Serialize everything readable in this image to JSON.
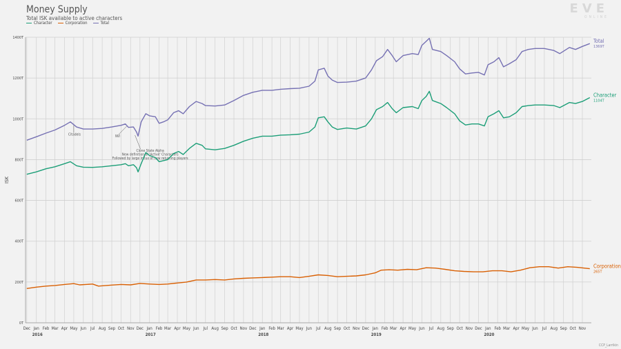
{
  "header": {
    "title": "Money Supply",
    "subtitle": "Total ISK available to active characters",
    "logo": "EVE",
    "logo_sub": "ONLINE",
    "credit": "CCP_Larrikin"
  },
  "colors": {
    "Character": "#1b9e77",
    "Corporation": "#d95f02",
    "Total": "#7570b3"
  },
  "chart_data": {
    "type": "line",
    "title": "Money Supply",
    "subtitle": "Total ISK available to active characters",
    "ylabel": "ISK",
    "xlabel": "",
    "ylim": [
      0,
      1400
    ],
    "yticks": [
      0,
      200,
      400,
      600,
      800,
      1000,
      1200,
      1400
    ],
    "ytick_labels": [
      "0T",
      "200T",
      "400T",
      "600T",
      "800T",
      "1000T",
      "1200T",
      "1400T"
    ],
    "x_range": [
      "2015-11-27",
      "2020-11-30"
    ],
    "month_labels": [
      "Dec",
      "Jan",
      "Feb",
      "Mar",
      "Apr",
      "May",
      "Jun",
      "Jul",
      "Aug",
      "Sep",
      "Oct",
      "Nov",
      "Dec",
      "Jan",
      "Feb",
      "Mar",
      "Apr",
      "May",
      "Jun",
      "Jul",
      "Aug",
      "Sep",
      "Oct",
      "Nov",
      "Dec",
      "Jan",
      "Feb",
      "Mar",
      "Apr",
      "May",
      "Jun",
      "Jul",
      "Aug",
      "Sep",
      "Oct",
      "Nov",
      "Dec",
      "Jan",
      "Feb",
      "Mar",
      "Apr",
      "May",
      "Jun",
      "Jul",
      "Aug",
      "Sep",
      "Oct",
      "Nov",
      "Dec",
      "Jan",
      "Feb",
      "Mar",
      "Apr",
      "May",
      "Jun",
      "Jul",
      "Aug",
      "Sep",
      "Oct",
      "Nov"
    ],
    "year_labels": [
      {
        "year": "2016",
        "date": "2016-01-01"
      },
      {
        "year": "2017",
        "date": "2017-01-01"
      },
      {
        "year": "2018",
        "date": "2018-01-01"
      },
      {
        "year": "2019",
        "date": "2019-01-01"
      },
      {
        "year": "2020",
        "date": "2020-01-01"
      }
    ],
    "grid": true,
    "legend": "top-left",
    "series": [
      {
        "name": "Total",
        "end_label": "Total",
        "end_value": "1369T",
        "points": [
          [
            "2015-12-01",
            895
          ],
          [
            "2016-01-01",
            912
          ],
          [
            "2016-02-01",
            930
          ],
          [
            "2016-03-01",
            945
          ],
          [
            "2016-04-01",
            968
          ],
          [
            "2016-04-20",
            985
          ],
          [
            "2016-05-10",
            960
          ],
          [
            "2016-06-01",
            950
          ],
          [
            "2016-07-01",
            950
          ],
          [
            "2016-08-01",
            953
          ],
          [
            "2016-09-01",
            960
          ],
          [
            "2016-10-01",
            968
          ],
          [
            "2016-10-15",
            975
          ],
          [
            "2016-10-25",
            958
          ],
          [
            "2016-11-10",
            960
          ],
          [
            "2016-11-20",
            935
          ],
          [
            "2016-11-25",
            915
          ],
          [
            "2016-12-05",
            985
          ],
          [
            "2016-12-20",
            1025
          ],
          [
            "2017-01-01",
            1015
          ],
          [
            "2017-01-20",
            1010
          ],
          [
            "2017-02-01",
            978
          ],
          [
            "2017-02-15",
            985
          ],
          [
            "2017-03-01",
            995
          ],
          [
            "2017-03-20",
            1030
          ],
          [
            "2017-04-05",
            1040
          ],
          [
            "2017-04-20",
            1025
          ],
          [
            "2017-05-10",
            1060
          ],
          [
            "2017-06-01",
            1085
          ],
          [
            "2017-06-20",
            1075
          ],
          [
            "2017-07-01",
            1065
          ],
          [
            "2017-08-01",
            1063
          ],
          [
            "2017-09-01",
            1068
          ],
          [
            "2017-10-01",
            1090
          ],
          [
            "2017-11-01",
            1115
          ],
          [
            "2017-12-01",
            1130
          ],
          [
            "2018-01-01",
            1140
          ],
          [
            "2018-02-01",
            1140
          ],
          [
            "2018-03-01",
            1145
          ],
          [
            "2018-04-01",
            1148
          ],
          [
            "2018-05-01",
            1150
          ],
          [
            "2018-06-01",
            1160
          ],
          [
            "2018-06-20",
            1185
          ],
          [
            "2018-07-01",
            1240
          ],
          [
            "2018-07-20",
            1248
          ],
          [
            "2018-08-01",
            1210
          ],
          [
            "2018-08-15",
            1190
          ],
          [
            "2018-09-01",
            1178
          ],
          [
            "2018-10-01",
            1180
          ],
          [
            "2018-11-01",
            1185
          ],
          [
            "2018-12-01",
            1200
          ],
          [
            "2018-12-20",
            1240
          ],
          [
            "2019-01-05",
            1285
          ],
          [
            "2019-01-25",
            1305
          ],
          [
            "2019-02-10",
            1340
          ],
          [
            "2019-02-25",
            1310
          ],
          [
            "2019-03-10",
            1280
          ],
          [
            "2019-04-01",
            1310
          ],
          [
            "2019-05-01",
            1320
          ],
          [
            "2019-05-20",
            1315
          ],
          [
            "2019-06-01",
            1360
          ],
          [
            "2019-06-15",
            1380
          ],
          [
            "2019-06-25",
            1395
          ],
          [
            "2019-07-05",
            1340
          ],
          [
            "2019-08-01",
            1330
          ],
          [
            "2019-08-20",
            1310
          ],
          [
            "2019-09-15",
            1280
          ],
          [
            "2019-10-01",
            1245
          ],
          [
            "2019-10-20",
            1220
          ],
          [
            "2019-11-10",
            1225
          ],
          [
            "2019-12-01",
            1228
          ],
          [
            "2019-12-20",
            1215
          ],
          [
            "2020-01-01",
            1265
          ],
          [
            "2020-01-20",
            1280
          ],
          [
            "2020-02-05",
            1300
          ],
          [
            "2020-02-20",
            1255
          ],
          [
            "2020-03-10",
            1270
          ],
          [
            "2020-04-01",
            1290
          ],
          [
            "2020-04-20",
            1330
          ],
          [
            "2020-05-10",
            1340
          ],
          [
            "2020-06-01",
            1345
          ],
          [
            "2020-07-01",
            1345
          ],
          [
            "2020-08-01",
            1335
          ],
          [
            "2020-08-20",
            1320
          ],
          [
            "2020-09-20",
            1350
          ],
          [
            "2020-10-10",
            1340
          ],
          [
            "2020-11-01",
            1355
          ],
          [
            "2020-11-25",
            1369
          ]
        ]
      },
      {
        "name": "Character",
        "end_label": "Character",
        "end_value": "1104T",
        "points": [
          [
            "2015-12-01",
            728
          ],
          [
            "2016-01-01",
            740
          ],
          [
            "2016-02-01",
            755
          ],
          [
            "2016-03-01",
            765
          ],
          [
            "2016-04-01",
            780
          ],
          [
            "2016-04-20",
            790
          ],
          [
            "2016-05-10",
            770
          ],
          [
            "2016-06-01",
            763
          ],
          [
            "2016-07-01",
            762
          ],
          [
            "2016-08-01",
            765
          ],
          [
            "2016-09-01",
            770
          ],
          [
            "2016-10-01",
            775
          ],
          [
            "2016-10-15",
            780
          ],
          [
            "2016-10-25",
            770
          ],
          [
            "2016-11-10",
            775
          ],
          [
            "2016-11-20",
            760
          ],
          [
            "2016-11-25",
            740
          ],
          [
            "2016-12-05",
            780
          ],
          [
            "2016-12-20",
            835
          ],
          [
            "2017-01-01",
            820
          ],
          [
            "2017-01-20",
            810
          ],
          [
            "2017-02-01",
            790
          ],
          [
            "2017-02-15",
            795
          ],
          [
            "2017-03-01",
            800
          ],
          [
            "2017-03-20",
            830
          ],
          [
            "2017-04-05",
            840
          ],
          [
            "2017-04-20",
            825
          ],
          [
            "2017-05-10",
            855
          ],
          [
            "2017-06-01",
            880
          ],
          [
            "2017-06-20",
            870
          ],
          [
            "2017-07-01",
            853
          ],
          [
            "2017-08-01",
            848
          ],
          [
            "2017-09-01",
            855
          ],
          [
            "2017-10-01",
            870
          ],
          [
            "2017-11-01",
            890
          ],
          [
            "2017-12-01",
            905
          ],
          [
            "2018-01-01",
            915
          ],
          [
            "2018-02-01",
            915
          ],
          [
            "2018-03-01",
            920
          ],
          [
            "2018-04-01",
            922
          ],
          [
            "2018-05-01",
            925
          ],
          [
            "2018-06-01",
            935
          ],
          [
            "2018-06-20",
            960
          ],
          [
            "2018-07-01",
            1005
          ],
          [
            "2018-07-20",
            1010
          ],
          [
            "2018-08-01",
            985
          ],
          [
            "2018-08-15",
            960
          ],
          [
            "2018-09-01",
            948
          ],
          [
            "2018-10-01",
            955
          ],
          [
            "2018-11-01",
            950
          ],
          [
            "2018-12-01",
            965
          ],
          [
            "2018-12-20",
            1000
          ],
          [
            "2019-01-05",
            1045
          ],
          [
            "2019-01-25",
            1060
          ],
          [
            "2019-02-10",
            1080
          ],
          [
            "2019-02-25",
            1050
          ],
          [
            "2019-03-10",
            1030
          ],
          [
            "2019-04-01",
            1055
          ],
          [
            "2019-05-01",
            1060
          ],
          [
            "2019-05-20",
            1050
          ],
          [
            "2019-06-01",
            1090
          ],
          [
            "2019-06-15",
            1110
          ],
          [
            "2019-06-25",
            1135
          ],
          [
            "2019-07-05",
            1090
          ],
          [
            "2019-08-01",
            1075
          ],
          [
            "2019-08-20",
            1055
          ],
          [
            "2019-09-15",
            1025
          ],
          [
            "2019-10-01",
            990
          ],
          [
            "2019-10-20",
            970
          ],
          [
            "2019-11-10",
            975
          ],
          [
            "2019-12-01",
            975
          ],
          [
            "2019-12-20",
            965
          ],
          [
            "2020-01-01",
            1010
          ],
          [
            "2020-01-20",
            1025
          ],
          [
            "2020-02-05",
            1040
          ],
          [
            "2020-02-20",
            1005
          ],
          [
            "2020-03-10",
            1010
          ],
          [
            "2020-04-01",
            1030
          ],
          [
            "2020-04-20",
            1060
          ],
          [
            "2020-05-10",
            1065
          ],
          [
            "2020-06-01",
            1068
          ],
          [
            "2020-07-01",
            1068
          ],
          [
            "2020-08-01",
            1065
          ],
          [
            "2020-08-20",
            1055
          ],
          [
            "2020-09-20",
            1080
          ],
          [
            "2020-10-10",
            1075
          ],
          [
            "2020-11-01",
            1085
          ],
          [
            "2020-11-25",
            1104
          ]
        ]
      },
      {
        "name": "Corporation",
        "end_label": "Corporation",
        "end_value": "265T",
        "points": [
          [
            "2015-12-01",
            168
          ],
          [
            "2016-01-01",
            175
          ],
          [
            "2016-02-01",
            180
          ],
          [
            "2016-03-01",
            183
          ],
          [
            "2016-04-01",
            188
          ],
          [
            "2016-05-01",
            192
          ],
          [
            "2016-05-20",
            186
          ],
          [
            "2016-07-01",
            190
          ],
          [
            "2016-07-20",
            180
          ],
          [
            "2016-09-01",
            185
          ],
          [
            "2016-10-01",
            188
          ],
          [
            "2016-11-01",
            186
          ],
          [
            "2016-12-01",
            193
          ],
          [
            "2017-01-01",
            190
          ],
          [
            "2017-02-01",
            188
          ],
          [
            "2017-03-01",
            190
          ],
          [
            "2017-04-01",
            195
          ],
          [
            "2017-05-01",
            200
          ],
          [
            "2017-06-01",
            210
          ],
          [
            "2017-07-01",
            210
          ],
          [
            "2017-08-01",
            212
          ],
          [
            "2017-09-01",
            210
          ],
          [
            "2017-10-01",
            215
          ],
          [
            "2017-11-01",
            218
          ],
          [
            "2017-12-01",
            220
          ],
          [
            "2018-01-01",
            222
          ],
          [
            "2018-02-01",
            224
          ],
          [
            "2018-03-01",
            226
          ],
          [
            "2018-04-01",
            226
          ],
          [
            "2018-05-01",
            222
          ],
          [
            "2018-06-01",
            228
          ],
          [
            "2018-07-01",
            235
          ],
          [
            "2018-08-01",
            232
          ],
          [
            "2018-09-01",
            226
          ],
          [
            "2018-10-01",
            228
          ],
          [
            "2018-11-01",
            230
          ],
          [
            "2018-12-01",
            235
          ],
          [
            "2019-01-01",
            245
          ],
          [
            "2019-01-20",
            258
          ],
          [
            "2019-02-15",
            260
          ],
          [
            "2019-03-15",
            258
          ],
          [
            "2019-04-15",
            262
          ],
          [
            "2019-05-15",
            260
          ],
          [
            "2019-06-15",
            270
          ],
          [
            "2019-07-15",
            268
          ],
          [
            "2019-08-15",
            262
          ],
          [
            "2019-09-15",
            255
          ],
          [
            "2019-10-15",
            252
          ],
          [
            "2019-11-15",
            250
          ],
          [
            "2019-12-15",
            250
          ],
          [
            "2020-01-15",
            255
          ],
          [
            "2020-02-15",
            255
          ],
          [
            "2020-03-15",
            250
          ],
          [
            "2020-04-15",
            258
          ],
          [
            "2020-05-15",
            270
          ],
          [
            "2020-06-15",
            275
          ],
          [
            "2020-07-15",
            275
          ],
          [
            "2020-08-15",
            268
          ],
          [
            "2020-09-15",
            275
          ],
          [
            "2020-10-15",
            272
          ],
          [
            "2020-11-25",
            265
          ]
        ]
      }
    ],
    "annotations": [
      {
        "text": "Citadels",
        "date": "2016-05-01",
        "value": 985,
        "label_value": 918,
        "align": "left"
      },
      {
        "text": "IWI",
        "date": "2016-10-20",
        "value": 975,
        "label_value": 910,
        "align": "right"
      },
      {
        "text": "Clone State Alpha",
        "date": "2016-11-15",
        "value": 930,
        "label_value": 838,
        "align": "center"
      },
      {
        "text": "New definition of 'Active' Characters",
        "date": "2016-11-15",
        "value": 930,
        "label_value": 820,
        "align": "center"
      },
      {
        "text": "Followed by large influx of new returning players",
        "date": "2016-11-15",
        "value": 930,
        "label_value": 802,
        "align": "center"
      }
    ]
  }
}
